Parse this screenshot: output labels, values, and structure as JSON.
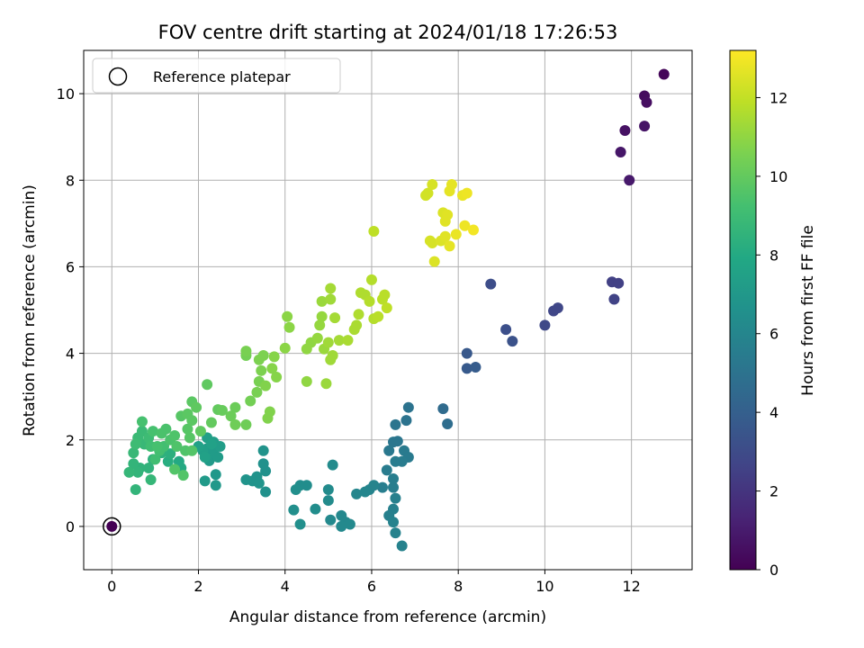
{
  "chart_data": {
    "type": "scatter",
    "title": "FOV centre drift starting at 2024/01/18 17:26:53",
    "xlabel": "Angular distance from reference (arcmin)",
    "ylabel": "Rotation from reference (arcmin)",
    "xlim": [
      -0.65,
      13.4
    ],
    "ylim": [
      -1.0,
      11.0
    ],
    "xticks": [
      0,
      2,
      4,
      6,
      8,
      10,
      12
    ],
    "yticks": [
      0,
      2,
      4,
      6,
      8,
      10
    ],
    "grid": true,
    "legend": {
      "position": "top-left",
      "entries": [
        "Reference platepar"
      ]
    },
    "colorbar": {
      "label": "Hours from first FF file",
      "range": [
        0,
        13.2
      ],
      "ticks": [
        0,
        2,
        4,
        6,
        8,
        10,
        12
      ],
      "colormap": "viridis"
    },
    "reference_point": {
      "x": 0,
      "y": 0,
      "hours": 0
    },
    "points": [
      {
        "x": 12.75,
        "y": 10.45,
        "h": 0.2
      },
      {
        "x": 12.3,
        "y": 9.95,
        "h": 0.4
      },
      {
        "x": 12.35,
        "y": 9.8,
        "h": 0.5
      },
      {
        "x": 11.85,
        "y": 9.15,
        "h": 0.6
      },
      {
        "x": 12.3,
        "y": 9.25,
        "h": 0.7
      },
      {
        "x": 11.75,
        "y": 8.65,
        "h": 0.8
      },
      {
        "x": 11.95,
        "y": 8.0,
        "h": 0.9
      },
      {
        "x": 11.55,
        "y": 5.65,
        "h": 2.5
      },
      {
        "x": 11.7,
        "y": 5.62,
        "h": 2.5
      },
      {
        "x": 11.6,
        "y": 5.25,
        "h": 2.6
      },
      {
        "x": 10.3,
        "y": 5.05,
        "h": 2.8
      },
      {
        "x": 10.2,
        "y": 4.98,
        "h": 2.8
      },
      {
        "x": 10.0,
        "y": 4.65,
        "h": 2.9
      },
      {
        "x": 8.75,
        "y": 5.6,
        "h": 3.1
      },
      {
        "x": 9.1,
        "y": 4.55,
        "h": 3.2
      },
      {
        "x": 9.25,
        "y": 4.28,
        "h": 3.3
      },
      {
        "x": 8.2,
        "y": 4.0,
        "h": 3.6
      },
      {
        "x": 8.2,
        "y": 3.65,
        "h": 3.7
      },
      {
        "x": 8.4,
        "y": 3.68,
        "h": 3.8
      },
      {
        "x": 7.65,
        "y": 2.72,
        "h": 4.6
      },
      {
        "x": 7.75,
        "y": 2.37,
        "h": 4.7
      },
      {
        "x": 6.85,
        "y": 2.75,
        "h": 5.0
      },
      {
        "x": 6.8,
        "y": 2.45,
        "h": 5.0
      },
      {
        "x": 6.55,
        "y": 2.35,
        "h": 5.1
      },
      {
        "x": 6.5,
        "y": 1.95,
        "h": 5.2
      },
      {
        "x": 6.6,
        "y": 1.97,
        "h": 5.2
      },
      {
        "x": 6.4,
        "y": 1.75,
        "h": 5.3
      },
      {
        "x": 6.75,
        "y": 1.75,
        "h": 5.4
      },
      {
        "x": 6.85,
        "y": 1.6,
        "h": 5.4
      },
      {
        "x": 6.55,
        "y": 1.5,
        "h": 5.5
      },
      {
        "x": 6.7,
        "y": 1.5,
        "h": 5.5
      },
      {
        "x": 6.35,
        "y": 1.3,
        "h": 5.5
      },
      {
        "x": 6.5,
        "y": 1.1,
        "h": 5.6
      },
      {
        "x": 6.25,
        "y": 0.9,
        "h": 5.6
      },
      {
        "x": 6.5,
        "y": 0.9,
        "h": 5.6
      },
      {
        "x": 6.55,
        "y": 0.65,
        "h": 5.7
      },
      {
        "x": 6.5,
        "y": 0.4,
        "h": 5.7
      },
      {
        "x": 6.4,
        "y": 0.25,
        "h": 5.7
      },
      {
        "x": 6.5,
        "y": 0.1,
        "h": 5.8
      },
      {
        "x": 6.55,
        "y": -0.15,
        "h": 5.8
      },
      {
        "x": 6.7,
        "y": -0.45,
        "h": 5.8
      },
      {
        "x": 6.05,
        "y": 0.95,
        "h": 5.9
      },
      {
        "x": 5.95,
        "y": 0.85,
        "h": 5.9
      },
      {
        "x": 5.85,
        "y": 0.8,
        "h": 6.0
      },
      {
        "x": 5.65,
        "y": 0.75,
        "h": 6.0
      },
      {
        "x": 5.3,
        "y": 0.25,
        "h": 6.1
      },
      {
        "x": 5.4,
        "y": 0.1,
        "h": 6.1
      },
      {
        "x": 5.3,
        "y": 0.0,
        "h": 6.2
      },
      {
        "x": 5.5,
        "y": 0.05,
        "h": 6.2
      },
      {
        "x": 5.05,
        "y": 0.15,
        "h": 6.2
      },
      {
        "x": 5.0,
        "y": 0.6,
        "h": 6.3
      },
      {
        "x": 5.0,
        "y": 0.85,
        "h": 6.3
      },
      {
        "x": 5.1,
        "y": 1.42,
        "h": 6.3
      },
      {
        "x": 4.7,
        "y": 0.4,
        "h": 6.4
      },
      {
        "x": 4.35,
        "y": 0.95,
        "h": 6.4
      },
      {
        "x": 4.5,
        "y": 0.95,
        "h": 6.4
      },
      {
        "x": 4.25,
        "y": 0.85,
        "h": 6.5
      },
      {
        "x": 4.2,
        "y": 0.38,
        "h": 6.5
      },
      {
        "x": 4.35,
        "y": 0.05,
        "h": 6.5
      },
      {
        "x": 3.55,
        "y": 0.8,
        "h": 6.6
      },
      {
        "x": 3.5,
        "y": 1.45,
        "h": 6.6
      },
      {
        "x": 3.55,
        "y": 1.28,
        "h": 6.6
      },
      {
        "x": 3.5,
        "y": 1.75,
        "h": 6.7
      },
      {
        "x": 3.35,
        "y": 1.15,
        "h": 6.7
      },
      {
        "x": 3.25,
        "y": 1.05,
        "h": 6.7
      },
      {
        "x": 3.1,
        "y": 1.08,
        "h": 6.8
      },
      {
        "x": 3.4,
        "y": 1.0,
        "h": 6.8
      },
      {
        "x": 2.4,
        "y": 0.95,
        "h": 7.0
      },
      {
        "x": 2.4,
        "y": 1.2,
        "h": 7.0
      },
      {
        "x": 2.15,
        "y": 1.05,
        "h": 7.1
      },
      {
        "x": 2.25,
        "y": 1.52,
        "h": 7.1
      },
      {
        "x": 2.35,
        "y": 1.7,
        "h": 7.2
      },
      {
        "x": 2.45,
        "y": 1.6,
        "h": 7.2
      },
      {
        "x": 2.2,
        "y": 1.8,
        "h": 7.2
      },
      {
        "x": 2.35,
        "y": 1.95,
        "h": 7.3
      },
      {
        "x": 2.5,
        "y": 1.85,
        "h": 7.3
      },
      {
        "x": 2.1,
        "y": 1.75,
        "h": 7.4
      },
      {
        "x": 2.2,
        "y": 2.05,
        "h": 7.4
      },
      {
        "x": 2.0,
        "y": 1.85,
        "h": 7.5
      },
      {
        "x": 2.15,
        "y": 1.6,
        "h": 7.5
      },
      {
        "x": 2.3,
        "y": 1.9,
        "h": 7.5
      },
      {
        "x": 1.6,
        "y": 1.35,
        "h": 8.0
      },
      {
        "x": 1.55,
        "y": 1.5,
        "h": 8.0
      },
      {
        "x": 1.3,
        "y": 1.5,
        "h": 8.2
      },
      {
        "x": 1.35,
        "y": 1.68,
        "h": 8.3
      },
      {
        "x": 1.15,
        "y": 1.7,
        "h": 8.4
      },
      {
        "x": 0.95,
        "y": 1.55,
        "h": 8.4
      },
      {
        "x": 0.85,
        "y": 1.35,
        "h": 8.5
      },
      {
        "x": 0.65,
        "y": 1.35,
        "h": 8.5
      },
      {
        "x": 0.6,
        "y": 1.25,
        "h": 8.6
      },
      {
        "x": 0.5,
        "y": 1.45,
        "h": 8.6
      },
      {
        "x": 0.55,
        "y": 0.85,
        "h": 8.6
      },
      {
        "x": 0.9,
        "y": 1.08,
        "h": 8.7
      },
      {
        "x": 0.4,
        "y": 1.25,
        "h": 8.7
      },
      {
        "x": 0.5,
        "y": 1.7,
        "h": 8.8
      },
      {
        "x": 0.75,
        "y": 1.9,
        "h": 8.8
      },
      {
        "x": 0.6,
        "y": 2.05,
        "h": 8.9
      },
      {
        "x": 0.7,
        "y": 2.2,
        "h": 8.9
      },
      {
        "x": 0.85,
        "y": 2.05,
        "h": 9.0
      },
      {
        "x": 0.55,
        "y": 1.9,
        "h": 9.0
      },
      {
        "x": 0.9,
        "y": 1.85,
        "h": 9.1
      },
      {
        "x": 1.0,
        "y": 1.55,
        "h": 9.1
      },
      {
        "x": 1.1,
        "y": 1.75,
        "h": 9.2
      },
      {
        "x": 1.2,
        "y": 1.85,
        "h": 9.2
      },
      {
        "x": 0.95,
        "y": 2.2,
        "h": 9.3
      },
      {
        "x": 0.7,
        "y": 2.42,
        "h": 9.3
      },
      {
        "x": 1.05,
        "y": 1.85,
        "h": 9.3
      },
      {
        "x": 1.35,
        "y": 2.0,
        "h": 9.4
      },
      {
        "x": 1.25,
        "y": 2.25,
        "h": 9.4
      },
      {
        "x": 1.15,
        "y": 2.15,
        "h": 9.4
      },
      {
        "x": 1.45,
        "y": 2.1,
        "h": 9.5
      },
      {
        "x": 1.5,
        "y": 1.85,
        "h": 9.5
      },
      {
        "x": 1.7,
        "y": 1.75,
        "h": 9.5
      },
      {
        "x": 1.65,
        "y": 1.18,
        "h": 9.6
      },
      {
        "x": 1.45,
        "y": 1.32,
        "h": 9.6
      },
      {
        "x": 1.85,
        "y": 1.75,
        "h": 9.6
      },
      {
        "x": 1.8,
        "y": 2.05,
        "h": 9.7
      },
      {
        "x": 1.75,
        "y": 2.25,
        "h": 9.7
      },
      {
        "x": 1.6,
        "y": 2.55,
        "h": 9.7
      },
      {
        "x": 1.75,
        "y": 2.6,
        "h": 9.8
      },
      {
        "x": 1.85,
        "y": 2.45,
        "h": 9.8
      },
      {
        "x": 1.85,
        "y": 2.88,
        "h": 9.8
      },
      {
        "x": 1.95,
        "y": 2.75,
        "h": 9.9
      },
      {
        "x": 2.05,
        "y": 2.2,
        "h": 9.9
      },
      {
        "x": 2.2,
        "y": 3.28,
        "h": 9.9
      },
      {
        "x": 2.3,
        "y": 2.4,
        "h": 10.0
      },
      {
        "x": 2.45,
        "y": 2.7,
        "h": 10.0
      },
      {
        "x": 2.55,
        "y": 2.68,
        "h": 10.1
      },
      {
        "x": 2.75,
        "y": 2.55,
        "h": 10.2
      },
      {
        "x": 2.85,
        "y": 2.75,
        "h": 10.2
      },
      {
        "x": 2.85,
        "y": 2.35,
        "h": 10.3
      },
      {
        "x": 3.1,
        "y": 2.35,
        "h": 10.3
      },
      {
        "x": 3.2,
        "y": 2.9,
        "h": 10.4
      },
      {
        "x": 3.1,
        "y": 3.95,
        "h": 10.4
      },
      {
        "x": 3.1,
        "y": 4.05,
        "h": 10.5
      },
      {
        "x": 3.35,
        "y": 3.1,
        "h": 10.5
      },
      {
        "x": 3.4,
        "y": 3.35,
        "h": 10.5
      },
      {
        "x": 3.45,
        "y": 3.6,
        "h": 10.6
      },
      {
        "x": 3.4,
        "y": 3.85,
        "h": 10.6
      },
      {
        "x": 3.5,
        "y": 3.95,
        "h": 10.6
      },
      {
        "x": 3.55,
        "y": 3.25,
        "h": 10.7
      },
      {
        "x": 3.6,
        "y": 2.5,
        "h": 10.7
      },
      {
        "x": 3.65,
        "y": 2.65,
        "h": 10.7
      },
      {
        "x": 3.7,
        "y": 3.65,
        "h": 10.8
      },
      {
        "x": 3.75,
        "y": 3.92,
        "h": 10.8
      },
      {
        "x": 3.8,
        "y": 3.45,
        "h": 10.8
      },
      {
        "x": 4.0,
        "y": 4.12,
        "h": 10.9
      },
      {
        "x": 4.05,
        "y": 4.85,
        "h": 10.9
      },
      {
        "x": 4.1,
        "y": 4.6,
        "h": 10.9
      },
      {
        "x": 4.5,
        "y": 3.35,
        "h": 11.0
      },
      {
        "x": 4.5,
        "y": 4.1,
        "h": 11.0
      },
      {
        "x": 4.6,
        "y": 4.25,
        "h": 11.0
      },
      {
        "x": 4.75,
        "y": 4.35,
        "h": 11.1
      },
      {
        "x": 4.8,
        "y": 4.65,
        "h": 11.1
      },
      {
        "x": 4.85,
        "y": 4.85,
        "h": 11.1
      },
      {
        "x": 4.85,
        "y": 5.2,
        "h": 11.2
      },
      {
        "x": 4.9,
        "y": 4.1,
        "h": 11.2
      },
      {
        "x": 4.95,
        "y": 3.3,
        "h": 11.2
      },
      {
        "x": 5.0,
        "y": 4.25,
        "h": 11.3
      },
      {
        "x": 5.05,
        "y": 3.85,
        "h": 11.3
      },
      {
        "x": 5.1,
        "y": 3.95,
        "h": 11.3
      },
      {
        "x": 5.05,
        "y": 5.25,
        "h": 11.3
      },
      {
        "x": 5.05,
        "y": 5.5,
        "h": 11.4
      },
      {
        "x": 5.15,
        "y": 4.82,
        "h": 11.4
      },
      {
        "x": 5.25,
        "y": 4.3,
        "h": 11.4
      },
      {
        "x": 5.45,
        "y": 4.3,
        "h": 11.5
      },
      {
        "x": 5.6,
        "y": 4.55,
        "h": 11.5
      },
      {
        "x": 5.65,
        "y": 4.65,
        "h": 11.5
      },
      {
        "x": 5.7,
        "y": 4.9,
        "h": 11.6
      },
      {
        "x": 5.75,
        "y": 5.4,
        "h": 11.6
      },
      {
        "x": 5.85,
        "y": 5.35,
        "h": 11.6
      },
      {
        "x": 5.95,
        "y": 5.2,
        "h": 11.7
      },
      {
        "x": 6.0,
        "y": 5.7,
        "h": 11.7
      },
      {
        "x": 6.05,
        "y": 4.8,
        "h": 11.7
      },
      {
        "x": 6.15,
        "y": 4.85,
        "h": 11.8
      },
      {
        "x": 6.25,
        "y": 5.25,
        "h": 11.8
      },
      {
        "x": 6.3,
        "y": 5.35,
        "h": 11.8
      },
      {
        "x": 6.35,
        "y": 5.05,
        "h": 11.9
      },
      {
        "x": 6.05,
        "y": 6.82,
        "h": 11.9
      },
      {
        "x": 7.25,
        "y": 7.65,
        "h": 12.3
      },
      {
        "x": 7.3,
        "y": 7.7,
        "h": 12.3
      },
      {
        "x": 7.4,
        "y": 7.9,
        "h": 12.4
      },
      {
        "x": 7.35,
        "y": 6.6,
        "h": 12.4
      },
      {
        "x": 7.4,
        "y": 6.55,
        "h": 12.4
      },
      {
        "x": 7.45,
        "y": 6.12,
        "h": 12.5
      },
      {
        "x": 7.6,
        "y": 6.6,
        "h": 12.5
      },
      {
        "x": 7.65,
        "y": 7.25,
        "h": 12.5
      },
      {
        "x": 7.7,
        "y": 7.05,
        "h": 12.6
      },
      {
        "x": 7.7,
        "y": 6.7,
        "h": 12.6
      },
      {
        "x": 7.75,
        "y": 7.2,
        "h": 12.6
      },
      {
        "x": 7.8,
        "y": 7.75,
        "h": 12.7
      },
      {
        "x": 7.85,
        "y": 7.9,
        "h": 12.7
      },
      {
        "x": 7.8,
        "y": 6.48,
        "h": 12.7
      },
      {
        "x": 7.95,
        "y": 6.75,
        "h": 12.8
      },
      {
        "x": 8.1,
        "y": 7.65,
        "h": 12.8
      },
      {
        "x": 8.2,
        "y": 7.7,
        "h": 12.9
      },
      {
        "x": 8.15,
        "y": 6.95,
        "h": 12.9
      },
      {
        "x": 8.35,
        "y": 6.85,
        "h": 13.0
      }
    ]
  }
}
